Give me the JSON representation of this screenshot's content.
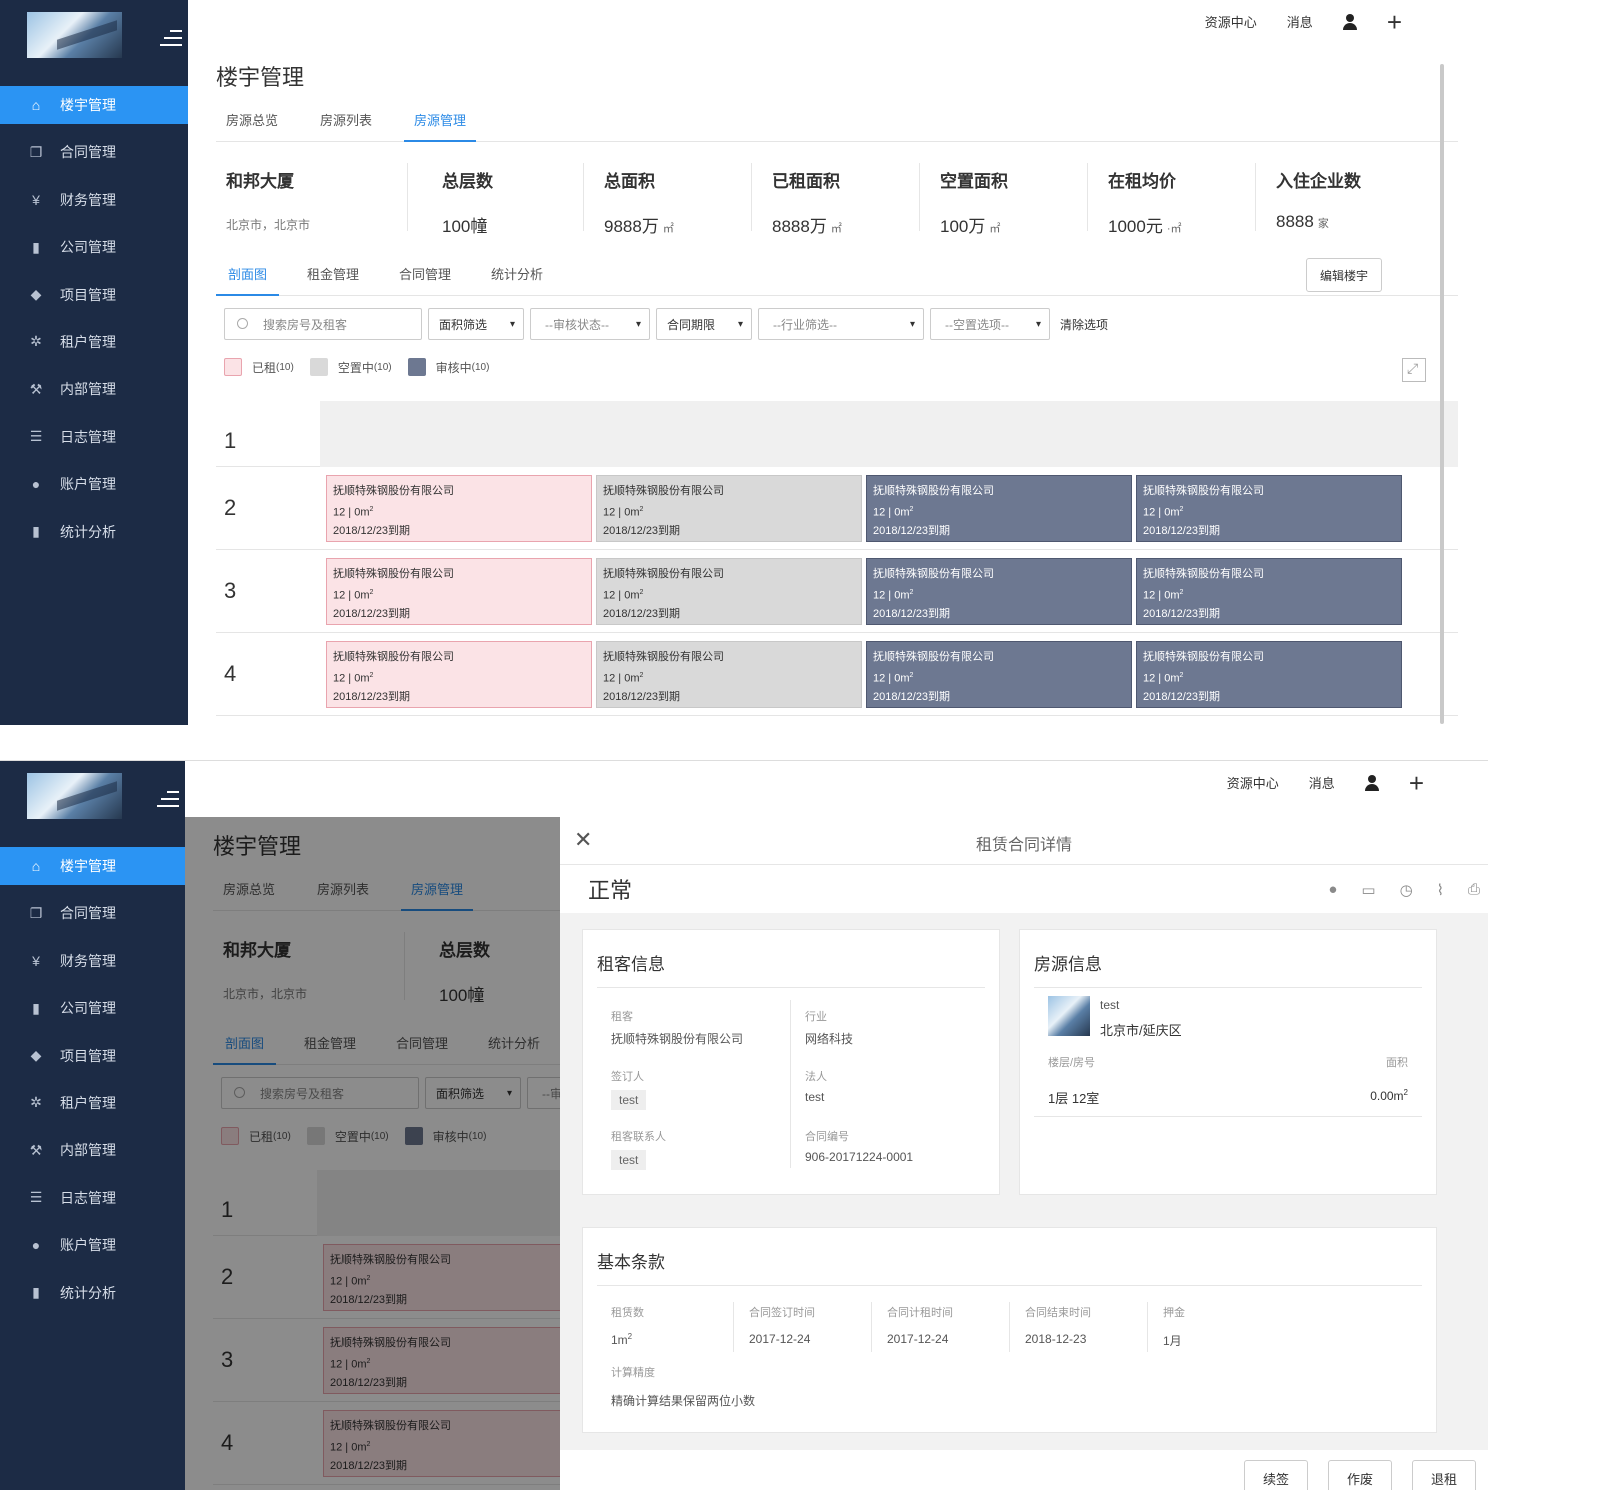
{
  "nav": {
    "items": [
      {
        "label": "楼宇管理",
        "icon": "home-icon"
      },
      {
        "label": "合同管理",
        "icon": "copy-icon"
      },
      {
        "label": "财务管理",
        "icon": "yen-icon"
      },
      {
        "label": "公司管理",
        "icon": "book-icon"
      },
      {
        "label": "项目管理",
        "icon": "tag-icon"
      },
      {
        "label": "租户管理",
        "icon": "gear-icon"
      },
      {
        "label": "内部管理",
        "icon": "wrench-icon"
      },
      {
        "label": "日志管理",
        "icon": "list-icon"
      },
      {
        "label": "账户管理",
        "icon": "user-icon"
      },
      {
        "label": "统计分析",
        "icon": "bar-chart-icon"
      }
    ]
  },
  "topbar": {
    "resource_center": "资源中心",
    "messages": "消息",
    "add": "+"
  },
  "page": {
    "title": "楼宇管理",
    "tabs": [
      "房源总览",
      "房源列表",
      "房源管理"
    ],
    "building": {
      "name": "和邦大厦",
      "address": "北京市，北京市"
    },
    "stats": [
      {
        "label": "总层数",
        "value": "100幢",
        "unit": ""
      },
      {
        "label": "总面积",
        "value": "9888万",
        "unit": "㎡"
      },
      {
        "label": "已租面积",
        "value": "8888万",
        "unit": "㎡"
      },
      {
        "label": "空置面积",
        "value": "100万",
        "unit": "㎡"
      },
      {
        "label": "在租均价",
        "value": "1000元",
        "unit": "·㎡"
      },
      {
        "label": "入住企业数",
        "value": "8888",
        "unit": "家"
      }
    ],
    "subtabs": [
      "剖面图",
      "租金管理",
      "合同管理",
      "统计分析"
    ],
    "edit_button": "编辑楼宇",
    "filters": {
      "search_placeholder": "搜索房号及租客",
      "area": "面积筛选",
      "audit": "--审核状态--",
      "term": "合同期限",
      "industry": "--行业筛选--",
      "vacancy": "--空置选项--",
      "clear": "清除选项"
    },
    "legend": [
      {
        "label": "已租",
        "count": "(10)",
        "color": "#fbe3e6"
      },
      {
        "label": "空置中",
        "count": "(10)",
        "color": "#d9d9d9"
      },
      {
        "label": "审核中",
        "count": "(10)",
        "color": "#6d7891"
      }
    ],
    "floors": [
      "1",
      "2",
      "3",
      "4"
    ],
    "room": {
      "company": "抚顺特殊钢股份有限公司",
      "area_prefix": "12 | 0m",
      "area_sup": "2",
      "due": "2018/12/23到期"
    }
  },
  "drawer": {
    "title": "租赁合同详情",
    "status": "正常",
    "tenant_card": {
      "title": "租客信息",
      "tenant_label": "租客",
      "tenant_value": "抚顺特殊钢股份有限公司",
      "industry_label": "行业",
      "industry_value": "网络科技",
      "signer_label": "签订人",
      "signer_value": "test",
      "legal_label": "法人",
      "legal_value": "test",
      "contact_label": "租客联系人",
      "contact_value": "test",
      "contract_label": "合同编号",
      "contract_value": "906-20171224-0001"
    },
    "house_card": {
      "title": "房源信息",
      "name": "test",
      "district": "北京市/延庆区",
      "floor_label": "楼层/房号",
      "area_label": "面积",
      "floor_value": "1层 12室",
      "area_value": "0.00m",
      "area_sup": "2"
    },
    "terms_card": {
      "title": "基本条款",
      "lease_label": "租赁数",
      "lease_value": "1m",
      "lease_sup": "2",
      "sign_label": "合同签订时间",
      "sign_value": "2017-12-24",
      "start_label": "合同计租时间",
      "start_value": "2017-12-24",
      "end_label": "合同结束时间",
      "end_value": "2018-12-23",
      "deposit_label": "押金",
      "deposit_value": "1月",
      "precision_label": "计算精度",
      "precision_value": "精确计算结果保留两位小数"
    },
    "actions": [
      "续签",
      "作废",
      "退租"
    ]
  }
}
